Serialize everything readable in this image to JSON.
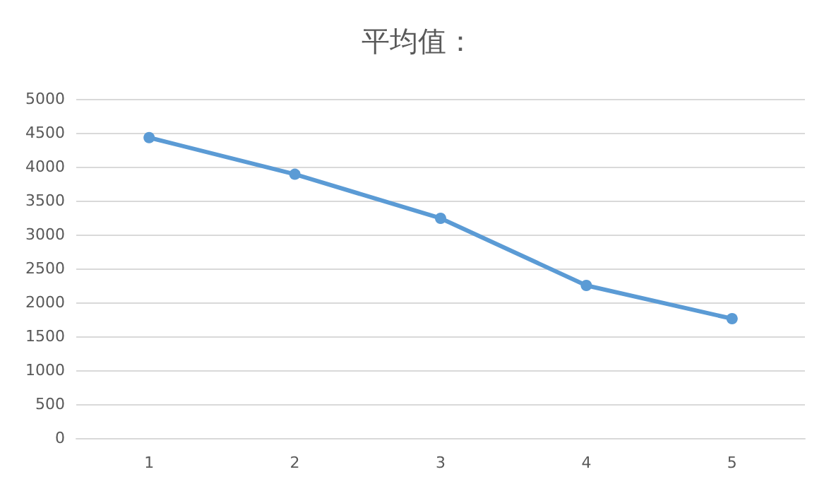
{
  "chart_data": {
    "type": "line",
    "title": "平均值：",
    "categories": [
      "1",
      "2",
      "3",
      "4",
      "5"
    ],
    "series": [
      {
        "color": "#5b9bd5",
        "values": [
          4430,
          3890,
          3240,
          2250,
          1760
        ]
      }
    ],
    "ylim": [
      0,
      5000
    ],
    "yticks": [
      0,
      500,
      1000,
      1500,
      2000,
      2500,
      3000,
      3500,
      4000,
      4500,
      5000
    ],
    "grid": "y",
    "marker": "circle",
    "line_style": "solid"
  }
}
